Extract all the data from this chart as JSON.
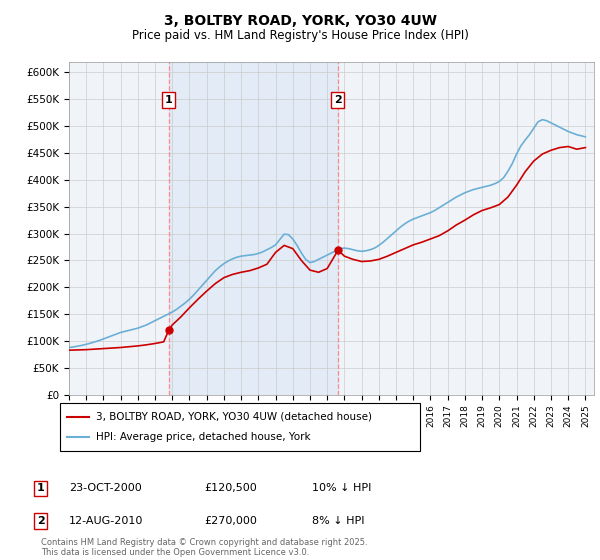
{
  "title": "3, BOLTBY ROAD, YORK, YO30 4UW",
  "subtitle": "Price paid vs. HM Land Registry's House Price Index (HPI)",
  "ylim": [
    0,
    620000
  ],
  "yticks": [
    0,
    50000,
    100000,
    150000,
    200000,
    250000,
    300000,
    350000,
    400000,
    450000,
    500000,
    550000,
    600000
  ],
  "ytick_labels": [
    "£0",
    "£50K",
    "£100K",
    "£150K",
    "£200K",
    "£250K",
    "£300K",
    "£350K",
    "£400K",
    "£450K",
    "£500K",
    "£550K",
    "£600K"
  ],
  "hpi_color": "#6baed6",
  "price_color": "#cc0000",
  "vline_color": "#ff8888",
  "shade_color": "#ddeeff",
  "legend_label_price": "3, BOLTBY ROAD, YORK, YO30 4UW (detached house)",
  "legend_label_hpi": "HPI: Average price, detached house, York",
  "annotation1_num": "1",
  "annotation1_date": "23-OCT-2000",
  "annotation1_price": "£120,500",
  "annotation1_hpi": "10% ↓ HPI",
  "annotation2_num": "2",
  "annotation2_date": "12-AUG-2010",
  "annotation2_price": "£270,000",
  "annotation2_hpi": "8% ↓ HPI",
  "footnote": "Contains HM Land Registry data © Crown copyright and database right 2025.\nThis data is licensed under the Open Government Licence v3.0.",
  "sale1_year": 2000.8,
  "sale2_year": 2010.6,
  "sale1_price": 120500,
  "sale2_price": 270000,
  "hpi_years": [
    1995,
    1995.25,
    1995.5,
    1995.75,
    1996,
    1996.25,
    1996.5,
    1996.75,
    1997,
    1997.25,
    1997.5,
    1997.75,
    1998,
    1998.25,
    1998.5,
    1998.75,
    1999,
    1999.25,
    1999.5,
    1999.75,
    2000,
    2000.25,
    2000.5,
    2000.75,
    2001,
    2001.25,
    2001.5,
    2001.75,
    2002,
    2002.25,
    2002.5,
    2002.75,
    2003,
    2003.25,
    2003.5,
    2003.75,
    2004,
    2004.25,
    2004.5,
    2004.75,
    2005,
    2005.25,
    2005.5,
    2005.75,
    2006,
    2006.25,
    2006.5,
    2006.75,
    2007,
    2007.25,
    2007.5,
    2007.75,
    2008,
    2008.25,
    2008.5,
    2008.75,
    2009,
    2009.25,
    2009.5,
    2009.75,
    2010,
    2010.25,
    2010.5,
    2010.75,
    2011,
    2011.25,
    2011.5,
    2011.75,
    2012,
    2012.25,
    2012.5,
    2012.75,
    2013,
    2013.25,
    2013.5,
    2013.75,
    2014,
    2014.25,
    2014.5,
    2014.75,
    2015,
    2015.25,
    2015.5,
    2015.75,
    2016,
    2016.25,
    2016.5,
    2016.75,
    2017,
    2017.25,
    2017.5,
    2017.75,
    2018,
    2018.25,
    2018.5,
    2018.75,
    2019,
    2019.25,
    2019.5,
    2019.75,
    2020,
    2020.25,
    2020.5,
    2020.75,
    2021,
    2021.25,
    2021.5,
    2021.75,
    2022,
    2022.25,
    2022.5,
    2022.75,
    2023,
    2023.25,
    2023.5,
    2023.75,
    2024,
    2024.25,
    2024.5,
    2024.75,
    2025
  ],
  "hpi_values": [
    88000,
    89000,
    90500,
    92000,
    94000,
    96000,
    98500,
    101000,
    104000,
    107000,
    110000,
    113000,
    116000,
    118000,
    120000,
    122000,
    124000,
    127000,
    130000,
    134000,
    138000,
    142000,
    146000,
    150000,
    154000,
    159000,
    165000,
    171000,
    178000,
    186000,
    195000,
    204000,
    213000,
    222000,
    231000,
    238000,
    244000,
    249000,
    253000,
    256000,
    258000,
    259000,
    260000,
    261000,
    263000,
    266000,
    270000,
    274000,
    279000,
    289000,
    299000,
    298000,
    290000,
    278000,
    264000,
    252000,
    246000,
    248000,
    252000,
    256000,
    260000,
    264000,
    268000,
    272000,
    273000,
    272000,
    270000,
    268000,
    267000,
    268000,
    270000,
    273000,
    278000,
    284000,
    291000,
    298000,
    305000,
    312000,
    318000,
    323000,
    327000,
    330000,
    333000,
    336000,
    339000,
    343000,
    348000,
    353000,
    358000,
    363000,
    368000,
    372000,
    376000,
    379000,
    382000,
    384000,
    386000,
    388000,
    390000,
    393000,
    397000,
    404000,
    416000,
    430000,
    448000,
    463000,
    474000,
    484000,
    496000,
    508000,
    512000,
    510000,
    506000,
    502000,
    498000,
    494000,
    490000,
    487000,
    484000,
    482000,
    480000
  ],
  "price_years": [
    1995,
    1995.5,
    1996,
    1996.5,
    1997,
    1997.5,
    1998,
    1998.5,
    1999,
    1999.5,
    2000,
    2000.5,
    2000.8,
    2001,
    2001.5,
    2002,
    2002.5,
    2003,
    2003.5,
    2004,
    2004.5,
    2005,
    2005.5,
    2006,
    2006.5,
    2007,
    2007.5,
    2008,
    2008.5,
    2009,
    2009.5,
    2010,
    2010.5,
    2010.6,
    2011,
    2011.5,
    2012,
    2012.5,
    2013,
    2013.5,
    2014,
    2014.5,
    2015,
    2015.5,
    2016,
    2016.5,
    2017,
    2017.5,
    2018,
    2018.5,
    2019,
    2019.5,
    2020,
    2020.5,
    2021,
    2021.5,
    2022,
    2022.5,
    2023,
    2023.5,
    2024,
    2024.5,
    2025
  ],
  "price_values": [
    83000,
    83500,
    84000,
    85000,
    86000,
    87000,
    88000,
    89500,
    91000,
    93000,
    95500,
    98500,
    120500,
    130000,
    145000,
    162000,
    178000,
    193000,
    207000,
    218000,
    224000,
    228000,
    231000,
    236000,
    243000,
    265000,
    278000,
    272000,
    250000,
    232000,
    228000,
    235000,
    262000,
    270000,
    258000,
    252000,
    248000,
    249000,
    252000,
    258000,
    265000,
    272000,
    279000,
    284000,
    290000,
    296000,
    305000,
    316000,
    325000,
    335000,
    343000,
    348000,
    354000,
    368000,
    390000,
    415000,
    435000,
    448000,
    455000,
    460000,
    462000,
    457000,
    460000
  ]
}
